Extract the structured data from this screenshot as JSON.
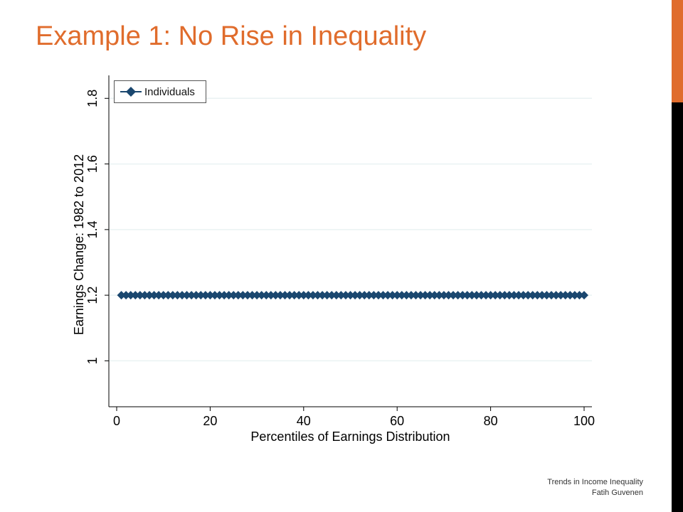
{
  "slide": {
    "title": "Example 1: No Rise in Inequality",
    "footer_line1": "Trends in Income Inequality",
    "footer_line2": "Fatih Guvenen"
  },
  "colors": {
    "title": "#e06c2c",
    "accent_orange": "#e06c2c",
    "accent_black": "#000000",
    "series": "#1a476f",
    "grid": "#eaf2f3"
  },
  "chart_data": {
    "type": "line",
    "xlabel": "Percentiles of Earnings Distribution",
    "ylabel": "Earnings Change: 1982 to 2012",
    "xlim": [
      0,
      100
    ],
    "ylim": [
      0.86,
      1.87
    ],
    "xticks": [
      "0",
      "20",
      "40",
      "60",
      "80",
      "100"
    ],
    "yticks": [
      "1",
      "1.2",
      "1.4",
      "1.6",
      "1.8"
    ],
    "grid": true,
    "legend_position": "top-left",
    "series": [
      {
        "name": "Individuals",
        "marker": "diamond",
        "x": [
          1,
          2,
          3,
          4,
          5,
          6,
          7,
          8,
          9,
          10,
          11,
          12,
          13,
          14,
          15,
          16,
          17,
          18,
          19,
          20,
          21,
          22,
          23,
          24,
          25,
          26,
          27,
          28,
          29,
          30,
          31,
          32,
          33,
          34,
          35,
          36,
          37,
          38,
          39,
          40,
          41,
          42,
          43,
          44,
          45,
          46,
          47,
          48,
          49,
          50,
          51,
          52,
          53,
          54,
          55,
          56,
          57,
          58,
          59,
          60,
          61,
          62,
          63,
          64,
          65,
          66,
          67,
          68,
          69,
          70,
          71,
          72,
          73,
          74,
          75,
          76,
          77,
          78,
          79,
          80,
          81,
          82,
          83,
          84,
          85,
          86,
          87,
          88,
          89,
          90,
          91,
          92,
          93,
          94,
          95,
          96,
          97,
          98,
          99,
          100
        ],
        "y": [
          1.2,
          1.2,
          1.2,
          1.2,
          1.2,
          1.2,
          1.2,
          1.2,
          1.2,
          1.2,
          1.2,
          1.2,
          1.2,
          1.2,
          1.2,
          1.2,
          1.2,
          1.2,
          1.2,
          1.2,
          1.2,
          1.2,
          1.2,
          1.2,
          1.2,
          1.2,
          1.2,
          1.2,
          1.2,
          1.2,
          1.2,
          1.2,
          1.2,
          1.2,
          1.2,
          1.2,
          1.2,
          1.2,
          1.2,
          1.2,
          1.2,
          1.2,
          1.2,
          1.2,
          1.2,
          1.2,
          1.2,
          1.2,
          1.2,
          1.2,
          1.2,
          1.2,
          1.2,
          1.2,
          1.2,
          1.2,
          1.2,
          1.2,
          1.2,
          1.2,
          1.2,
          1.2,
          1.2,
          1.2,
          1.2,
          1.2,
          1.2,
          1.2,
          1.2,
          1.2,
          1.2,
          1.2,
          1.2,
          1.2,
          1.2,
          1.2,
          1.2,
          1.2,
          1.2,
          1.2,
          1.2,
          1.2,
          1.2,
          1.2,
          1.2,
          1.2,
          1.2,
          1.2,
          1.2,
          1.2,
          1.2,
          1.2,
          1.2,
          1.2,
          1.2,
          1.2,
          1.2,
          1.2,
          1.2,
          1.2
        ]
      }
    ]
  }
}
